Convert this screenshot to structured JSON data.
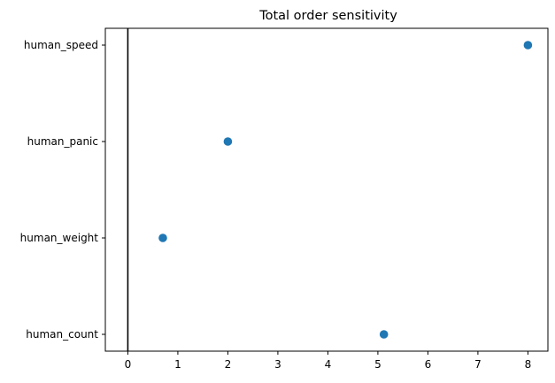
{
  "chart_data": {
    "type": "scatter",
    "title": "Total order sensitivity",
    "xlabel": "",
    "ylabel": "",
    "categories": [
      "human_speed",
      "human_panic",
      "human_weight",
      "human_count"
    ],
    "values": [
      8.0,
      2.0,
      0.7,
      5.12
    ],
    "x_ticks": [
      0,
      1,
      2,
      3,
      4,
      5,
      6,
      7,
      8
    ],
    "xlim": [
      -0.45,
      8.4
    ],
    "reference_line_x": 0,
    "marker_color": "#1f77b4",
    "reference_line_color": "#000000",
    "grid": false,
    "legend": "none"
  }
}
